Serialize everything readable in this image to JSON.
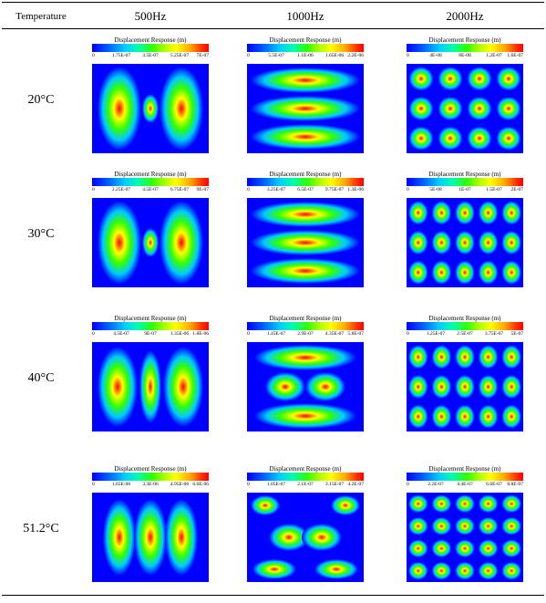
{
  "table": {
    "header": {
      "temperature": "Temperature",
      "col_500": "500Hz",
      "col_1000": "1000Hz",
      "col_2000": "2000Hz"
    },
    "colorbar_title": "Displacement Response (m)",
    "rows": [
      {
        "temp": "20°C",
        "cells": [
          {
            "freq": "500Hz",
            "ticks": [
              "0",
              "1.75E-07",
              "3.5E-07",
              "5.25E-07",
              "7E-07"
            ]
          },
          {
            "freq": "1000Hz",
            "ticks": [
              "0",
              "5.5E-07",
              "1.1E-06",
              "1.65E-06",
              "2.2E-06"
            ]
          },
          {
            "freq": "2000Hz",
            "ticks": [
              "0",
              "4E-08",
              "8E-08",
              "1.2E-07",
              "1.6E-07"
            ]
          }
        ]
      },
      {
        "temp": "30°C",
        "cells": [
          {
            "freq": "500Hz",
            "ticks": [
              "0",
              "2.25E-07",
              "4.5E-07",
              "6.75E-07",
              "9E-07"
            ]
          },
          {
            "freq": "1000Hz",
            "ticks": [
              "0",
              "3.25E-07",
              "6.5E-07",
              "9.75E-07",
              "1.3E-06"
            ]
          },
          {
            "freq": "2000Hz",
            "ticks": [
              "0",
              "5E-08",
              "1E-07",
              "1.5E-07",
              "2E-07"
            ]
          }
        ]
      },
      {
        "temp": "40°C",
        "cells": [
          {
            "freq": "500Hz",
            "ticks": [
              "0",
              "4.5E-07",
              "9E-07",
              "1.35E-06",
              "1.8E-06"
            ]
          },
          {
            "freq": "1000Hz",
            "ticks": [
              "0",
              "1.45E-07",
              "2.9E-07",
              "4.35E-07",
              "5.8E-07"
            ]
          },
          {
            "freq": "2000Hz",
            "ticks": [
              "0",
              "1.25E-07",
              "2.5E-07",
              "3.75E-07",
              "5E-07"
            ]
          }
        ]
      },
      {
        "temp": "51.2°C",
        "cells": [
          {
            "freq": "500Hz",
            "ticks": [
              "0",
              "1.65E-06",
              "3.3E-06",
              "4.95E-06",
              "6.6E-06"
            ]
          },
          {
            "freq": "1000Hz",
            "ticks": [
              "0",
              "1.05E-07",
              "2.1E-07",
              "3.15E-07",
              "4.2E-07"
            ]
          },
          {
            "freq": "2000Hz",
            "ticks": [
              "0",
              "2.2E-07",
              "4.4E-07",
              "6.6E-07",
              "8.8E-07"
            ]
          }
        ]
      }
    ]
  },
  "colormap": [
    "#0000ff",
    "#00ccff",
    "#33ff00",
    "#ffff00",
    "#ff0000"
  ]
}
